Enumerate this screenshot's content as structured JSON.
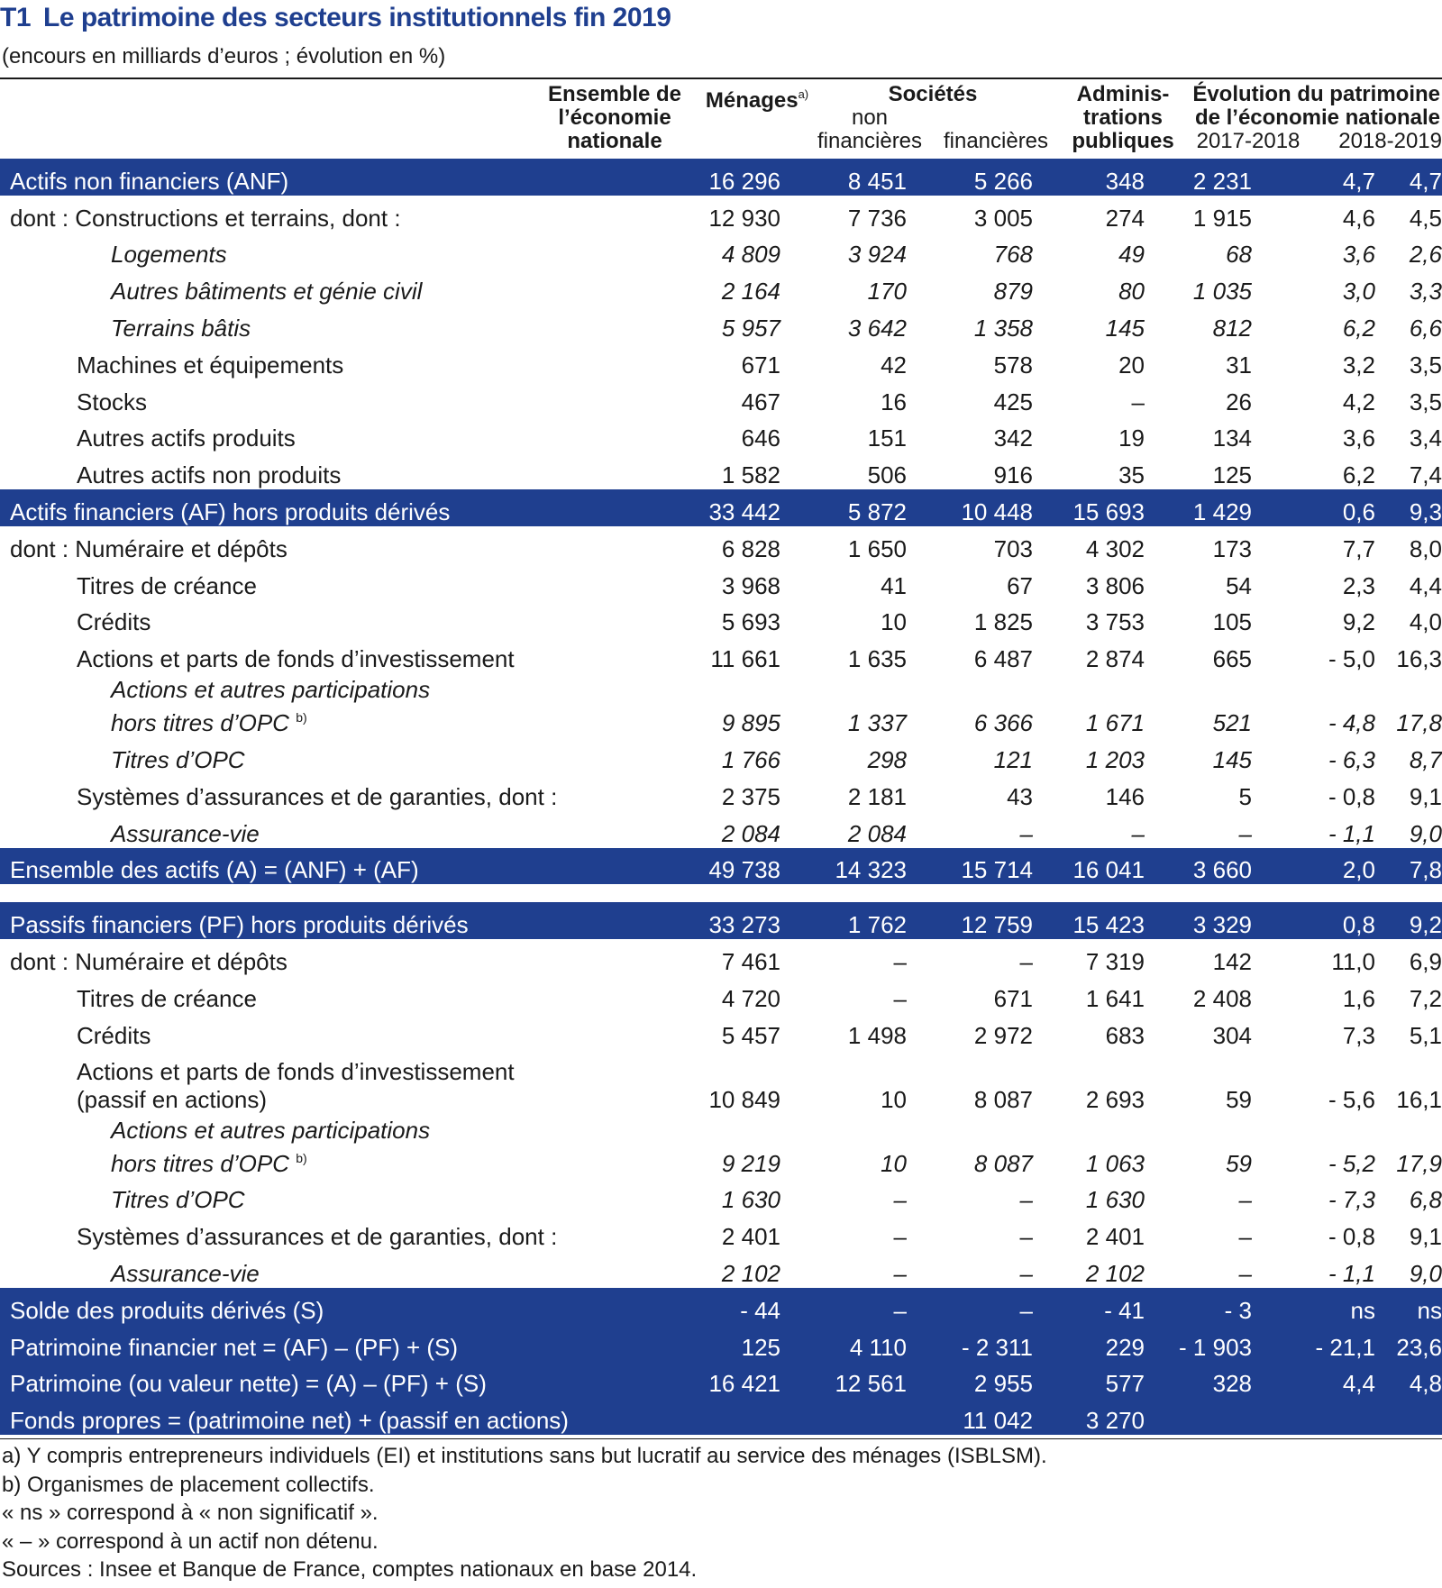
{
  "title": {
    "code": "T1",
    "text": "Le patrimoine des secteurs institutionnels fin 2019"
  },
  "subtitle": "(encours en milliards d’euros ; évolution en %)",
  "header": {
    "ensemble": [
      "Ensemble de",
      "l’économie",
      "nationale"
    ],
    "menages": "Ménages",
    "menages_note": "a)",
    "societes": "Sociétés",
    "snf": [
      "non",
      "financières"
    ],
    "sf": "financières",
    "apu": [
      "Adminis-",
      "trations",
      "publiques"
    ],
    "evolution": [
      "Évolution du patrimoine",
      "de l’économie nationale"
    ],
    "year1": "2017-2018",
    "year2": "2018-2019"
  },
  "rows": [
    {
      "label": "Actifs non financiers (ANF)",
      "v": [
        "16 296",
        "8 451",
        "5 266",
        "348",
        "2 231",
        "4,7",
        "4,7"
      ]
    },
    {
      "label": "dont : Constructions et terrains, dont :",
      "v": [
        "12 930",
        "7 736",
        "3 005",
        "274",
        "1 915",
        "4,6",
        "4,5"
      ]
    },
    {
      "label": "Logements",
      "v": [
        "4 809",
        "3 924",
        "768",
        "49",
        "68",
        "3,6",
        "2,6"
      ]
    },
    {
      "label": "Autres bâtiments et génie civil",
      "v": [
        "2 164",
        "170",
        "879",
        "80",
        "1 035",
        "3,0",
        "3,3"
      ]
    },
    {
      "label": "Terrains bâtis",
      "v": [
        "5 957",
        "3 642",
        "1 358",
        "145",
        "812",
        "6,2",
        "6,6"
      ]
    },
    {
      "label": "Machines et équipements",
      "v": [
        "671",
        "42",
        "578",
        "20",
        "31",
        "3,2",
        "3,5"
      ]
    },
    {
      "label": "Stocks",
      "v": [
        "467",
        "16",
        "425",
        "–",
        "26",
        "4,2",
        "3,5"
      ]
    },
    {
      "label": "Autres actifs produits",
      "v": [
        "646",
        "151",
        "342",
        "19",
        "134",
        "3,6",
        "3,4"
      ]
    },
    {
      "label": "Autres actifs non produits",
      "v": [
        "1 582",
        "506",
        "916",
        "35",
        "125",
        "6,2",
        "7,4"
      ]
    },
    {
      "label": "Actifs financiers (AF) hors produits dérivés",
      "v": [
        "33 442",
        "5 872",
        "10 448",
        "15 693",
        "1 429",
        "0,6",
        "9,3"
      ]
    },
    {
      "label": "dont : Numéraire et dépôts",
      "v": [
        "6 828",
        "1 650",
        "703",
        "4 302",
        "173",
        "7,7",
        "8,0"
      ]
    },
    {
      "label": "Titres de créance",
      "v": [
        "3 968",
        "41",
        "67",
        "3 806",
        "54",
        "2,3",
        "4,4"
      ]
    },
    {
      "label": "Crédits",
      "v": [
        "5 693",
        "10",
        "1 825",
        "3 753",
        "105",
        "9,2",
        "4,0"
      ]
    },
    {
      "label": "Actions et parts de fonds d’investissement",
      "v": [
        "11 661",
        "1 635",
        "6 487",
        "2 874",
        "665",
        "- 5,0",
        "16,3"
      ]
    },
    {
      "label": "Actions et autres participations",
      "label2": "hors titres d’OPC",
      "note": "b)",
      "v": [
        "9 895",
        "1 337",
        "6 366",
        "1 671",
        "521",
        "- 4,8",
        "17,8"
      ]
    },
    {
      "label": "Titres d’OPC",
      "v": [
        "1 766",
        "298",
        "121",
        "1 203",
        "145",
        "- 6,3",
        "8,7"
      ]
    },
    {
      "label": "Systèmes d’assurances et de garanties, dont :",
      "v": [
        "2 375",
        "2 181",
        "43",
        "146",
        "5",
        "- 0,8",
        "9,1"
      ]
    },
    {
      "label": "Assurance-vie",
      "v": [
        "2 084",
        "2 084",
        "–",
        "–",
        "–",
        "- 1,1",
        "9,0"
      ]
    },
    {
      "label": "Ensemble des actifs (A) = (ANF) + (AF)",
      "v": [
        "49 738",
        "14 323",
        "15 714",
        "16 041",
        "3 660",
        "2,0",
        "7,8"
      ]
    },
    {
      "label": "Passifs financiers (PF) hors produits dérivés",
      "v": [
        "33 273",
        "1 762",
        "12 759",
        "15 423",
        "3 329",
        "0,8",
        "9,2"
      ]
    },
    {
      "label": "dont : Numéraire et dépôts",
      "v": [
        "7 461",
        "–",
        "–",
        "7 319",
        "142",
        "11,0",
        "6,9"
      ]
    },
    {
      "label": "Titres de créance",
      "v": [
        "4 720",
        "–",
        "671",
        "1 641",
        "2 408",
        "1,6",
        "7,2"
      ]
    },
    {
      "label": "Crédits",
      "v": [
        "5 457",
        "1 498",
        "2 972",
        "683",
        "304",
        "7,3",
        "5,1"
      ]
    },
    {
      "label": "Actions et parts de fonds d’investissement",
      "label2": "(passif en actions)",
      "v": [
        "10 849",
        "10",
        "8 087",
        "2 693",
        "59",
        "- 5,6",
        "16,1"
      ]
    },
    {
      "label": "Actions et autres participations",
      "label2": "hors titres d’OPC",
      "note": "b)",
      "v": [
        "9 219",
        "10",
        "8 087",
        "1 063",
        "59",
        "- 5,2",
        "17,9"
      ]
    },
    {
      "label": "Titres d’OPC",
      "v": [
        "1 630",
        "–",
        "–",
        "1 630",
        "–",
        "- 7,3",
        "6,8"
      ]
    },
    {
      "label": "Systèmes d’assurances et de garanties, dont :",
      "v": [
        "2 401",
        "–",
        "–",
        "2 401",
        "–",
        "- 0,8",
        "9,1"
      ]
    },
    {
      "label": "Assurance-vie",
      "v": [
        "2 102",
        "–",
        "–",
        "2 102",
        "–",
        "- 1,1",
        "9,0"
      ]
    },
    {
      "label": "Solde des produits dérivés (S)",
      "v": [
        "- 44",
        "–",
        "–",
        "- 41",
        "- 3",
        "ns",
        "ns"
      ]
    },
    {
      "label": "Patrimoine financier net = (AF) – (PF) + (S)",
      "v": [
        "125",
        "4 110",
        "- 2 311",
        "229",
        "- 1 903",
        "- 21,1",
        "23,6"
      ]
    },
    {
      "label": "Patrimoine (ou valeur nette) = (A) – (PF) + (S)",
      "v": [
        "16 421",
        "12 561",
        "2 955",
        "577",
        "328",
        "4,4",
        "4,8"
      ]
    },
    {
      "label": "Fonds propres = (patrimoine net) + (passif en actions)",
      "v": [
        "",
        "",
        "11 042",
        "3 270",
        "",
        "",
        ""
      ]
    }
  ],
  "notes": [
    "a) Y compris entrepreneurs individuels (EI) et institutions sans but lucratif au service des ménages (ISBLSM).",
    "b) Organismes de placement collectifs.",
    "« ns » correspond à « non significatif ».",
    "« – » correspond à un actif non détenu.",
    "Sources : Insee et Banque de France, comptes nationaux en base 2014."
  ]
}
